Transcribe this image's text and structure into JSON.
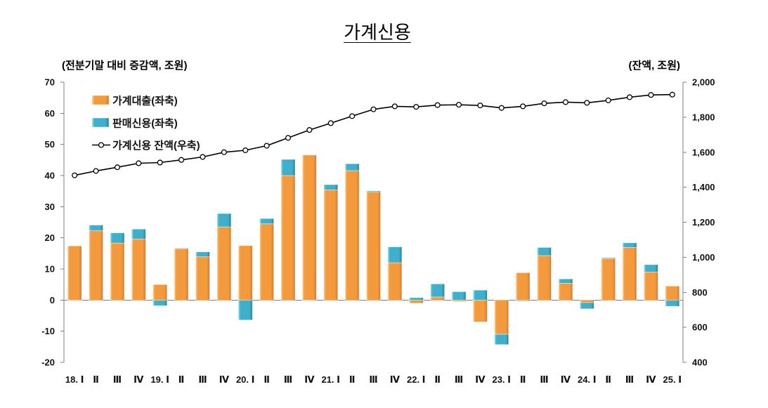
{
  "chart_data": {
    "type": "bar",
    "title": "가계신용",
    "ylabel": "(전분기말 대비 증감액, 조원)",
    "y2label": "(잔액, 조원)",
    "ylim": [
      -20,
      70
    ],
    "y2lim": [
      400,
      2000
    ],
    "yticks": [
      "70",
      "60",
      "50",
      "40",
      "30",
      "20",
      "10",
      "0",
      "-10",
      "-20"
    ],
    "y2ticks": [
      "2,000",
      "1,800",
      "1,600",
      "1,400",
      "1,200",
      "1,000",
      "800",
      "600",
      "400"
    ],
    "categories": [
      "18. Ⅰ",
      "Ⅱ",
      "Ⅲ",
      "Ⅳ",
      "19. Ⅰ",
      "Ⅱ",
      "Ⅲ",
      "Ⅳ",
      "20. Ⅰ",
      "Ⅱ",
      "Ⅲ",
      "Ⅳ",
      "21. Ⅰ",
      "Ⅱ",
      "Ⅲ",
      "Ⅳ",
      "22. Ⅰ",
      "Ⅱ",
      "Ⅲ",
      "Ⅳ",
      "23. Ⅰ",
      "Ⅱ",
      "Ⅲ",
      "Ⅳ",
      "24. Ⅰ",
      "Ⅱ",
      "Ⅲ",
      "Ⅳ",
      "25. Ⅰ"
    ],
    "series": [
      {
        "name": "가계대출(좌축)",
        "type": "bar",
        "stacked": true,
        "yaxis": "left",
        "color": "#F39A3C",
        "values": [
          17.4,
          22.3,
          18.3,
          19.6,
          5.0,
          16.5,
          13.9,
          23.5,
          17.5,
          24.5,
          40.0,
          46.6,
          35.4,
          41.6,
          34.8,
          12.0,
          -1.0,
          1.0,
          -0.4,
          -7.0,
          -11.0,
          8.8,
          14.3,
          5.4,
          -0.8,
          13.3,
          16.9,
          9.0,
          4.5
        ]
      },
      {
        "name": "판매신용(좌축)",
        "type": "bar",
        "stacked": true,
        "yaxis": "left",
        "color": "#3FAFCB",
        "values": [
          -0.2,
          1.8,
          3.3,
          3.2,
          -1.8,
          0.2,
          1.6,
          4.3,
          -6.4,
          1.7,
          5.2,
          -0.2,
          1.7,
          2.2,
          0.3,
          5.1,
          0.8,
          4.2,
          2.7,
          3.2,
          -3.3,
          -0.3,
          2.6,
          1.4,
          -2.0,
          0.3,
          1.5,
          2.4,
          -2.0
        ]
      },
      {
        "name": "가계신용 잔액(우축)",
        "type": "line",
        "yaxis": "right",
        "color": "#000000",
        "values": [
          1468,
          1493,
          1514,
          1537,
          1541,
          1556,
          1573,
          1600,
          1611,
          1637,
          1682,
          1727,
          1766,
          1806,
          1845,
          1862,
          1859,
          1869,
          1871,
          1867,
          1853,
          1862,
          1879,
          1886,
          1882,
          1896,
          1914,
          1927,
          1929
        ]
      }
    ],
    "legend": "top-left",
    "grid": false
  }
}
